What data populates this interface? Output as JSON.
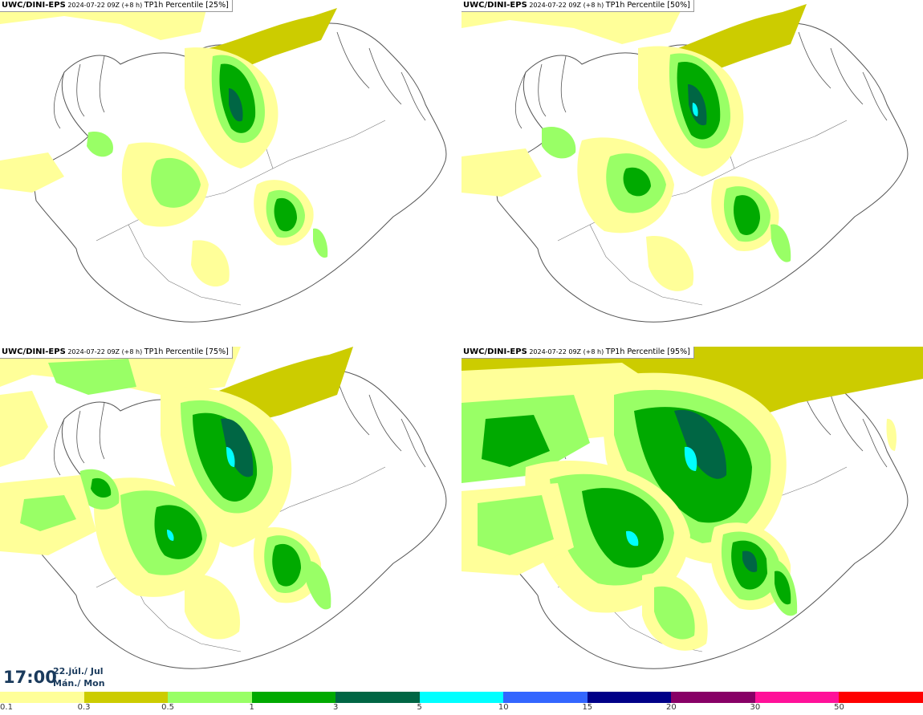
{
  "panels": [
    {
      "id": "p25",
      "source": "UWC/DINI-EPS",
      "run": "2024-07-22 09Z",
      "lead": "(+8 h)",
      "label": "TP1h Percentile [25%]"
    },
    {
      "id": "p50",
      "source": "UWC/DINI-EPS",
      "run": "2024-07-22 09Z",
      "lead": "(+8 h)",
      "label": "TP1h Percentile [50%]"
    },
    {
      "id": "p75",
      "source": "UWC/DINI-EPS",
      "run": "2024-07-22 09Z",
      "lead": "(+8 h)",
      "label": "TP1h Percentile [75%]"
    },
    {
      "id": "p95",
      "source": "UWC/DINI-EPS",
      "run": "2024-07-22 09Z",
      "lead": "(+8 h)",
      "label": "TP1h Percentile [95%]"
    }
  ],
  "valid_time": {
    "time": "17:00",
    "date_line1": "22.júl./ Jul",
    "date_line2": "Mán./ Mon"
  },
  "legend": {
    "colors": [
      "#ffff99",
      "#cccc00",
      "#99ff66",
      "#00aa00",
      "#006644",
      "#00ffff",
      "#3366ff",
      "#000088",
      "#880066",
      "#ff1199",
      "#ff0000"
    ],
    "ticks": [
      "0.1",
      "0.3",
      "0.5",
      "1",
      "3",
      "5",
      "10",
      "15",
      "20",
      "30",
      "50"
    ]
  }
}
